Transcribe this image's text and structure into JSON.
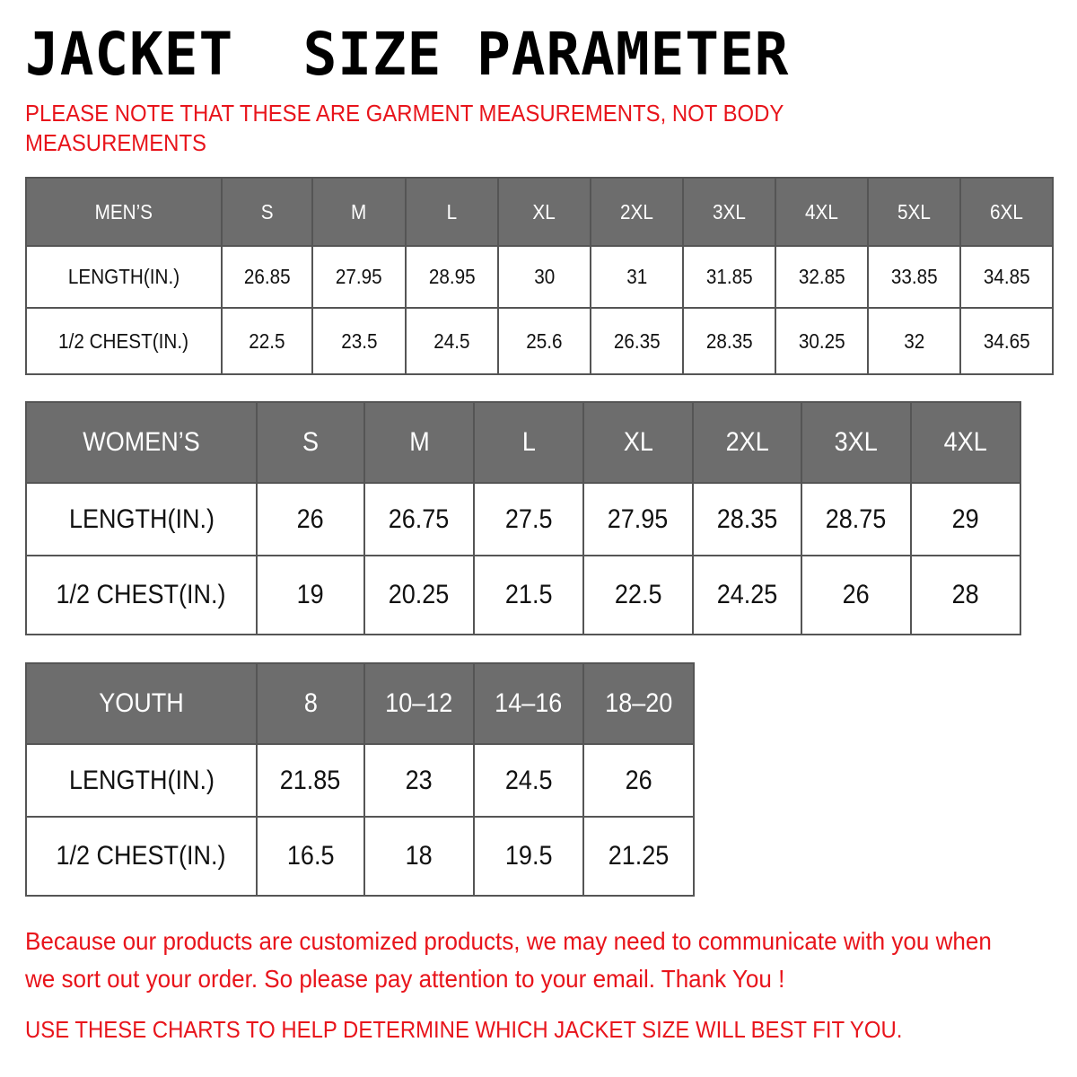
{
  "title": "JACKET  SIZE PARAMETER",
  "note": "PLEASE NOTE THAT THESE ARE GARMENT MEASUREMENTS, NOT BODY MEASUREMENTS",
  "colors": {
    "accent_red": "#e8141b",
    "header_gray": "#6d6d6d"
  },
  "tables": [
    {
      "id": "mens",
      "headers": [
        "MEN’S",
        "S",
        "M",
        "L",
        "XL",
        "2XL",
        "3XL",
        "4XL",
        "5XL",
        "6XL"
      ],
      "rows": [
        [
          "LENGTH(IN.)",
          "26.85",
          "27.95",
          "28.95",
          "30",
          "31",
          "31.85",
          "32.85",
          "33.85",
          "34.85"
        ],
        [
          "1/2 CHEST(IN.)",
          "22.5",
          "23.5",
          "24.5",
          "25.6",
          "26.35",
          "28.35",
          "30.25",
          "32",
          "34.65"
        ]
      ]
    },
    {
      "id": "womens",
      "headers": [
        "WOMEN’S",
        "S",
        "M",
        "L",
        "XL",
        "2XL",
        "3XL",
        "4XL"
      ],
      "rows": [
        [
          "LENGTH(IN.)",
          "26",
          "26.75",
          "27.5",
          "27.95",
          "28.35",
          "28.75",
          "29"
        ],
        [
          "1/2 CHEST(IN.)",
          "19",
          "20.25",
          "21.5",
          "22.5",
          "24.25",
          "26",
          "28"
        ]
      ]
    },
    {
      "id": "youth",
      "headers": [
        "YOUTH",
        "8",
        "10–12",
        "14–16",
        "18–20"
      ],
      "rows": [
        [
          "LENGTH(IN.)",
          "21.85",
          "23",
          "24.5",
          "26"
        ],
        [
          "1/2 CHEST(IN.)",
          "16.5",
          "18",
          "19.5",
          "21.25"
        ]
      ]
    }
  ],
  "footer": {
    "message": "Because our products are customized products, we may need to communicate with you when we sort out your order. So please pay attention to your email. Thank You !",
    "instruction": "USE THESE CHARTS TO HELP DETERMINE WHICH JACKET SIZE WILL BEST FIT YOU."
  }
}
